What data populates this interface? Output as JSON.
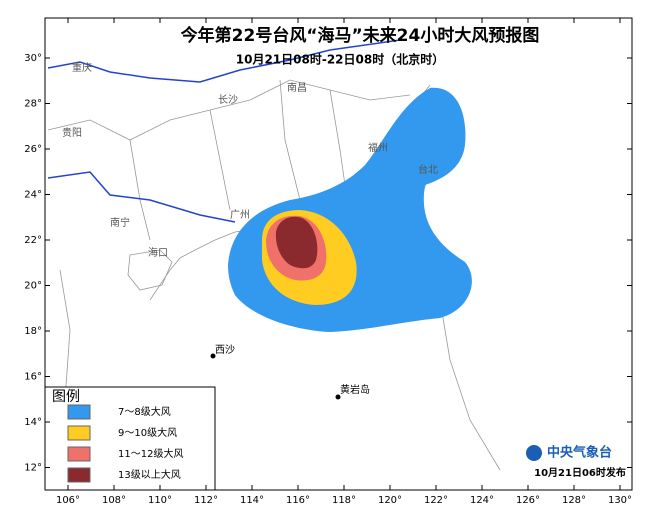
{
  "title": "今年第22号台风“海马”未来24小时大风预报图",
  "subtitle": "10月21日08时-22日08时（北京时）",
  "map": {
    "lon_ticks": [
      {
        "value": 106,
        "label": "106°"
      },
      {
        "value": 108,
        "label": "108°"
      },
      {
        "value": 110,
        "label": "110°"
      },
      {
        "value": 112,
        "label": "112°"
      },
      {
        "value": 114,
        "label": "114°"
      },
      {
        "value": 116,
        "label": "116°"
      },
      {
        "value": 118,
        "label": "118°"
      },
      {
        "value": 120,
        "label": "120°"
      },
      {
        "value": 122,
        "label": "122°"
      },
      {
        "value": 124,
        "label": "124°"
      },
      {
        "value": 126,
        "label": "126°"
      },
      {
        "value": 128,
        "label": "128°"
      },
      {
        "value": 130,
        "label": "130°"
      }
    ],
    "lat_ticks": [
      {
        "value": 30,
        "label": "30°"
      },
      {
        "value": 28,
        "label": "28°"
      },
      {
        "value": 26,
        "label": "26°"
      },
      {
        "value": 24,
        "label": "24°"
      },
      {
        "value": 22,
        "label": "22°"
      },
      {
        "value": 20,
        "label": "20°"
      },
      {
        "value": 18,
        "label": "18°"
      },
      {
        "value": 16,
        "label": "16°"
      },
      {
        "value": 14,
        "label": "14°"
      },
      {
        "value": 12,
        "label": "12°"
      }
    ],
    "places": [
      "重庆",
      "长沙",
      "南昌",
      "贵阳",
      "福州",
      "台北",
      "南宁",
      "广州",
      "海口",
      "西沙",
      "黄岩岛"
    ]
  },
  "legend": {
    "title": "图例",
    "items": [
      {
        "label": "7～8级大风",
        "color": "#3399ee"
      },
      {
        "label": "9～10级大风",
        "color": "#ffcc22"
      },
      {
        "label": "11～12级大风",
        "color": "#f0706a"
      },
      {
        "label": "13级以上大风",
        "color": "#8b2a2e"
      }
    ]
  },
  "footer": {
    "agency": "中央气象台",
    "issued": "10月21日06时发布"
  }
}
